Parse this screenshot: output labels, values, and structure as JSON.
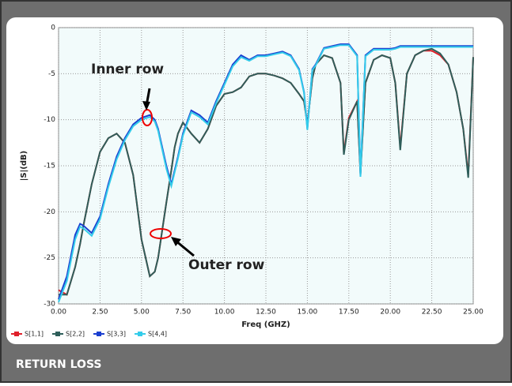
{
  "caption": "RETURN LOSS",
  "chart_data": {
    "type": "line",
    "ylabel": "|S|(dB)",
    "xlabel": "Freq (GHZ)",
    "annotations": [
      "Inner row",
      "Outer row"
    ],
    "xlim": [
      0,
      25
    ],
    "ylim": [
      -30,
      0
    ],
    "xticks": [
      {
        "value": 0,
        "label": "0.00"
      },
      {
        "value": 2.5,
        "label": "2.50"
      },
      {
        "value": 5,
        "label": "5.00"
      },
      {
        "value": 7.5,
        "label": "7.50"
      },
      {
        "value": 10,
        "label": "10.00"
      },
      {
        "value": 12.5,
        "label": "12.50"
      },
      {
        "value": 15,
        "label": "15.00"
      },
      {
        "value": 17.5,
        "label": "17.50"
      },
      {
        "value": 20,
        "label": "20.00"
      },
      {
        "value": 22.5,
        "label": "22.50"
      },
      {
        "value": 25,
        "label": "25.00"
      }
    ],
    "yticks": [
      0,
      -5,
      -10,
      -15,
      -20,
      -25,
      -30
    ],
    "grid": true,
    "x": [
      0,
      0.5,
      1,
      1.3,
      1.5,
      2,
      2.5,
      3,
      3.5,
      4,
      4.5,
      5,
      5.5,
      5.8,
      6,
      6.5,
      6.8,
      7,
      7.2,
      7.5,
      8,
      8.5,
      9,
      9.5,
      10,
      10.5,
      11,
      11.5,
      12,
      12.5,
      13,
      13.5,
      14,
      14.5,
      14.8,
      15,
      15.3,
      15.5,
      16,
      16.5,
      17,
      17.2,
      17.5,
      18,
      18.2,
      18.5,
      19,
      19.5,
      20,
      20.3,
      20.6,
      21,
      21.5,
      22,
      22.5,
      23,
      23.5,
      24,
      24.4,
      24.7,
      25
    ],
    "series": [
      {
        "name": "S[1,1]",
        "color": "#e0202a",
        "values": [
          -28.5,
          -29,
          -26,
          -23.5,
          -21.5,
          -17,
          -13.5,
          -12,
          -11.5,
          -12.5,
          -16,
          -23,
          -27,
          -26.5,
          -25,
          -19,
          -15.5,
          -13,
          -11.5,
          -10.3,
          -11.5,
          -12.5,
          -11,
          -8.5,
          -7.2,
          -7,
          -6.5,
          -5.3,
          -5,
          -5,
          -5.2,
          -5.5,
          -6,
          -7.2,
          -8,
          -10.5,
          -5.5,
          -4,
          -3,
          -3.3,
          -6,
          -13.6,
          -9.8,
          -8,
          -15.8,
          -6,
          -3.5,
          -3,
          -3.3,
          -6,
          -13,
          -5,
          -3,
          -2.5,
          -2.5,
          -3,
          -4,
          -7,
          -11,
          -16,
          -3.2
        ]
      },
      {
        "name": "S[2,2]",
        "color": "#2e5e5a",
        "values": [
          -29,
          -29,
          -26,
          -23.5,
          -21.5,
          -17,
          -13.5,
          -12,
          -11.5,
          -12.5,
          -16,
          -23,
          -27,
          -26.5,
          -25,
          -19,
          -15.5,
          -13,
          -11.5,
          -10.3,
          -11.5,
          -12.5,
          -11,
          -8.5,
          -7.2,
          -7,
          -6.5,
          -5.3,
          -5,
          -5,
          -5.2,
          -5.5,
          -6,
          -7.2,
          -8,
          -10.5,
          -5.5,
          -4,
          -3,
          -3.3,
          -6,
          -13.8,
          -10,
          -8,
          -16,
          -6,
          -3.5,
          -3,
          -3.3,
          -6,
          -13.3,
          -5,
          -3,
          -2.5,
          -2.3,
          -2.8,
          -4,
          -7,
          -11,
          -16.3,
          -3.2
        ]
      },
      {
        "name": "S[3,3]",
        "color": "#1a3fd0",
        "values": [
          -29.5,
          -27,
          -22.5,
          -21.3,
          -21.5,
          -22.3,
          -20.5,
          -17,
          -14,
          -12,
          -10.5,
          -9.8,
          -9.5,
          -10,
          -11,
          -15,
          -17,
          -15.5,
          -14,
          -11.5,
          -9,
          -9.5,
          -10.3,
          -8,
          -6,
          -4,
          -3,
          -3.5,
          -3,
          -3,
          -2.8,
          -2.6,
          -3,
          -4.5,
          -7,
          -11,
          -4.5,
          -4,
          -2.2,
          -2,
          -1.8,
          -1.8,
          -1.8,
          -3,
          -16,
          -3,
          -2.3,
          -2.3,
          -2.3,
          -2.2,
          -2,
          -2,
          -2,
          -2,
          -2,
          -2,
          -2,
          -2,
          -2,
          -2,
          -2
        ]
      },
      {
        "name": "S[4,4]",
        "color": "#33ccea",
        "values": [
          -29.8,
          -27.5,
          -23,
          -21.6,
          -21.8,
          -22.6,
          -20.8,
          -17.3,
          -14.3,
          -12.2,
          -10.7,
          -10,
          -9.7,
          -10.2,
          -11.2,
          -15.3,
          -17.2,
          -15.7,
          -14.2,
          -11.7,
          -9.2,
          -9.7,
          -10.5,
          -8.2,
          -6.2,
          -4.2,
          -3.2,
          -3.6,
          -3.1,
          -3.1,
          -2.9,
          -2.7,
          -3.1,
          -4.6,
          -7.1,
          -11.1,
          -4.6,
          -4.1,
          -2.3,
          -2.1,
          -1.9,
          -1.9,
          -1.9,
          -3.1,
          -16.2,
          -3.1,
          -2.4,
          -2.4,
          -2.4,
          -2.3,
          -2.1,
          -2.1,
          -2.1,
          -2.1,
          -2.1,
          -2.1,
          -2.1,
          -2.1,
          -2.1,
          -2.1,
          -2.1
        ]
      }
    ]
  }
}
